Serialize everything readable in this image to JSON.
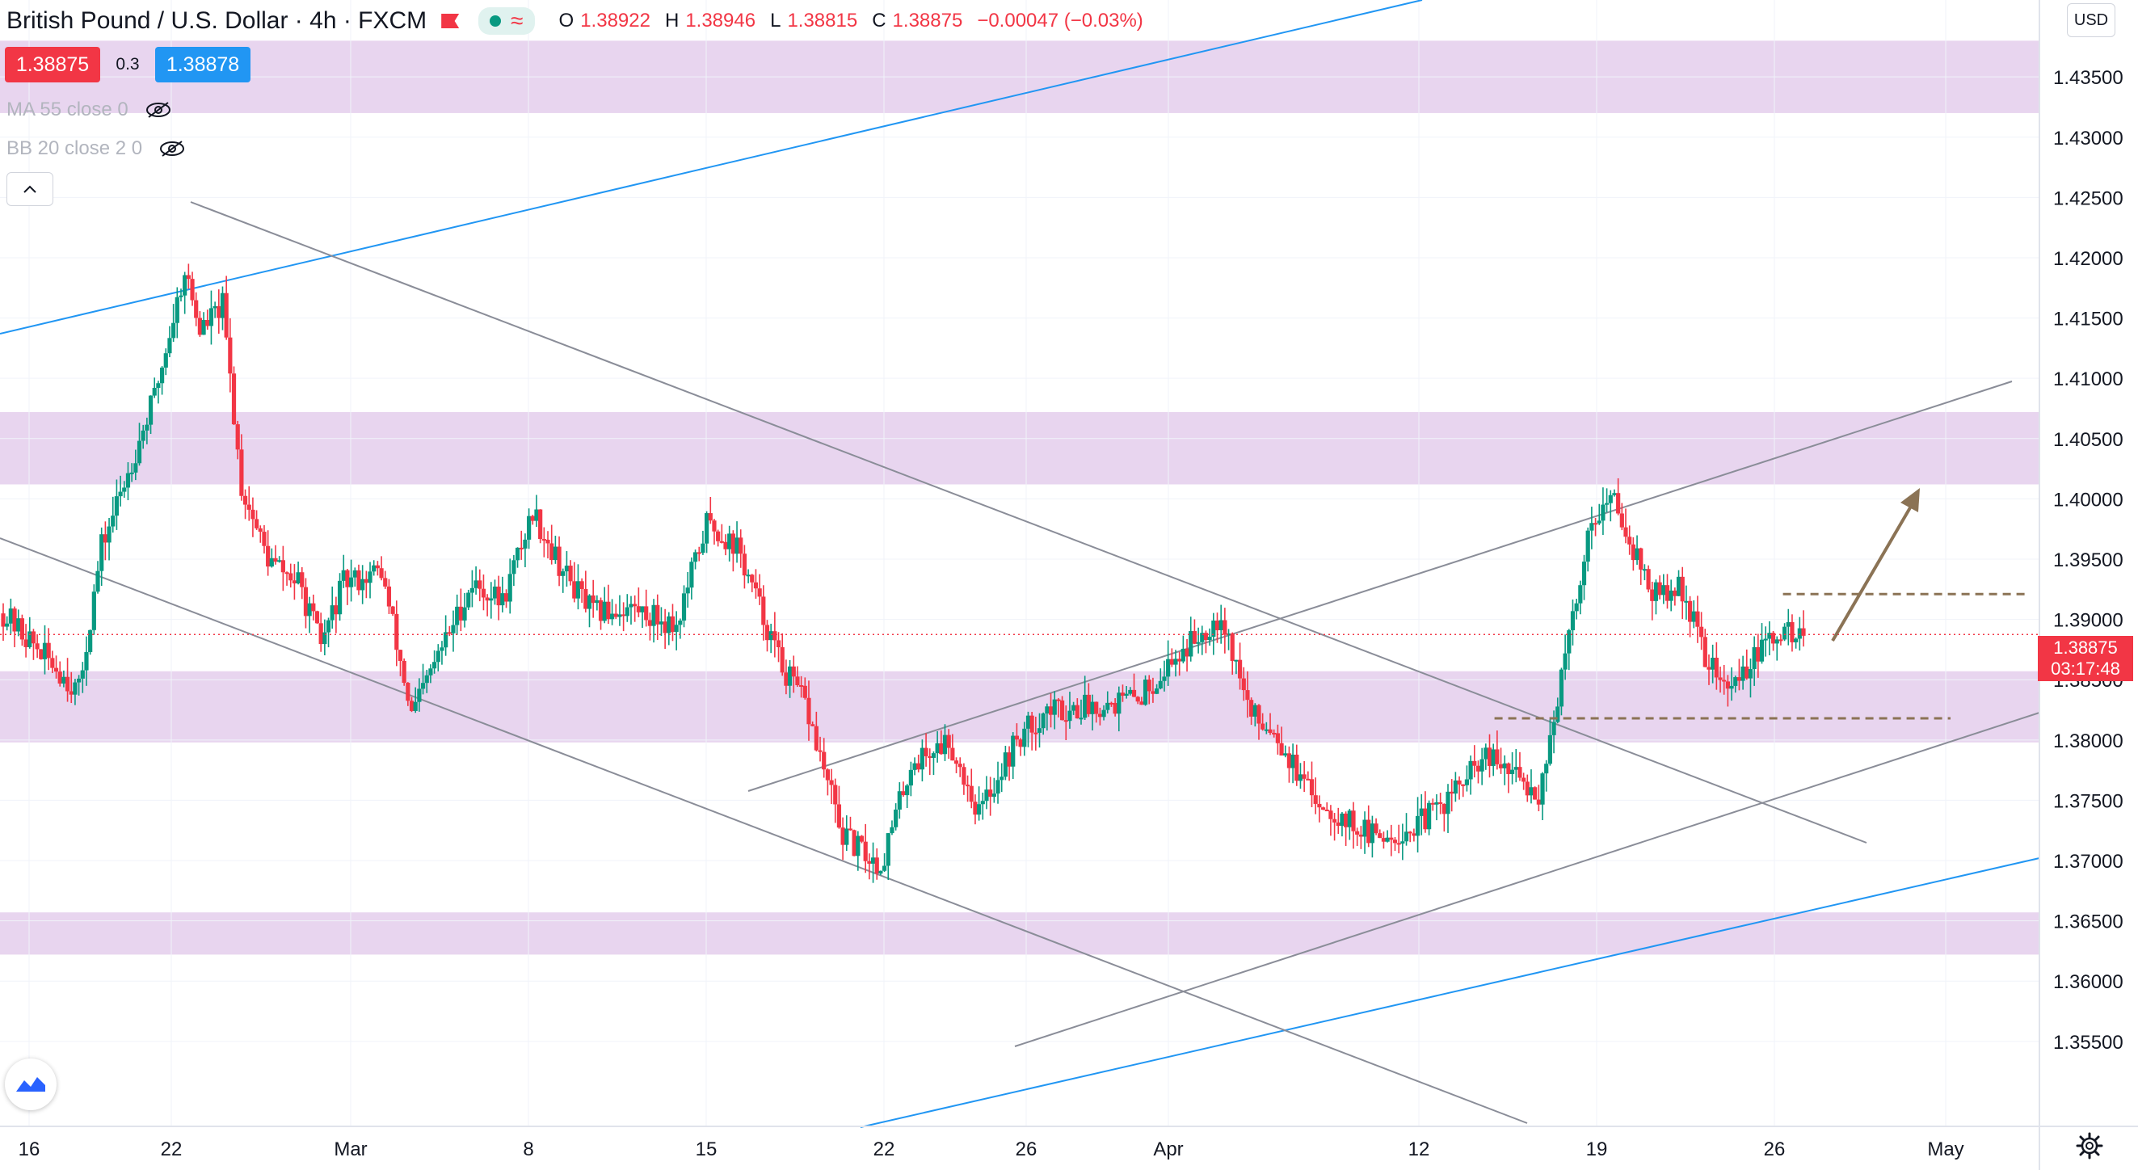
{
  "header": {
    "title": "British Pound / U.S. Dollar · 4h · FXCM",
    "ohlc": {
      "o_label": "O",
      "o_value": "1.38922",
      "h_label": "H",
      "h_value": "1.38946",
      "l_label": "L",
      "l_value": "1.38815",
      "c_label": "C",
      "c_value": "1.38875",
      "change": "−0.00047 (−0.03%)"
    },
    "status_icon": "wave-icon",
    "status_color": "#089981"
  },
  "trade": {
    "sell_price": "1.38875",
    "spread": "0.3",
    "buy_price": "1.38878",
    "sell_color": "#f23645",
    "buy_color": "#2196f3"
  },
  "indicators": [
    {
      "label": "MA 55 close 0",
      "icon": "eye-off-icon"
    },
    {
      "label": "BB 20 close 2 0",
      "icon": "eye-off-icon"
    }
  ],
  "price_axis": {
    "currency": "USD",
    "current_price": "1.38875",
    "countdown": "03:17:48",
    "tick_labels": [
      "1.43500",
      "1.43000",
      "1.42500",
      "1.42000",
      "1.41500",
      "1.41000",
      "1.40500",
      "1.40000",
      "1.39500",
      "1.39000",
      "1.38500",
      "1.38000",
      "1.37500",
      "1.37000",
      "1.36500",
      "1.36000",
      "1.35500"
    ]
  },
  "time_axis": {
    "tick_labels": [
      "16",
      "22",
      "Mar",
      "8",
      "15",
      "22",
      "26",
      "Apr",
      "12",
      "19",
      "26",
      "May"
    ]
  },
  "chart_data": {
    "type": "candlestick",
    "symbol": "British Pound / U.S. Dollar",
    "interval": "4h",
    "source": "FXCM",
    "ylim": [
      1.3505,
      1.4395
    ],
    "up_color": "#089981",
    "down_color": "#f23645",
    "zone_color": "#e1c9ea",
    "blue_line_color": "#2196f3",
    "gray_line_color": "#8a8d98",
    "annotation_color": "#8b7355",
    "candle_count": 280,
    "current_price_line": 1.38875,
    "anchors": [
      [
        0,
        1.3905
      ],
      [
        14,
        1.386
      ],
      [
        20,
        1.384
      ],
      [
        26,
        1.396
      ],
      [
        40,
        1.4085
      ],
      [
        48,
        1.419
      ],
      [
        52,
        1.414
      ],
      [
        58,
        1.416
      ],
      [
        63,
        1.401
      ],
      [
        70,
        1.395
      ],
      [
        78,
        1.393
      ],
      [
        84,
        1.388
      ],
      [
        90,
        1.393
      ],
      [
        100,
        1.394
      ],
      [
        108,
        1.382
      ],
      [
        115,
        1.387
      ],
      [
        124,
        1.393
      ],
      [
        132,
        1.3915
      ],
      [
        140,
        1.399
      ],
      [
        148,
        1.394
      ],
      [
        156,
        1.3905
      ],
      [
        166,
        1.391
      ],
      [
        178,
        1.3895
      ],
      [
        186,
        1.398
      ],
      [
        194,
        1.396
      ],
      [
        206,
        1.386
      ],
      [
        212,
        1.383
      ],
      [
        222,
        1.372
      ],
      [
        232,
        1.3695
      ],
      [
        240,
        1.378
      ],
      [
        250,
        1.38
      ],
      [
        258,
        1.374
      ],
      [
        268,
        1.38
      ],
      [
        276,
        1.3825
      ],
      [
        280,
        1.3825
      ],
      [
        300,
        1.3835
      ],
      [
        312,
        1.3875
      ],
      [
        322,
        1.3905
      ],
      [
        330,
        1.382
      ],
      [
        336,
        1.381
      ],
      [
        344,
        1.376
      ],
      [
        352,
        1.374
      ],
      [
        362,
        1.372
      ],
      [
        372,
        1.3725
      ],
      [
        380,
        1.3745
      ],
      [
        392,
        1.3785
      ],
      [
        400,
        1.377
      ],
      [
        406,
        1.3755
      ],
      [
        412,
        1.385
      ],
      [
        420,
        1.3985
      ],
      [
        426,
        1.4
      ],
      [
        436,
        1.392
      ],
      [
        444,
        1.3925
      ],
      [
        450,
        1.387
      ],
      [
        456,
        1.384
      ],
      [
        462,
        1.3865
      ],
      [
        470,
        1.389
      ],
      [
        476,
        1.3887
      ]
    ],
    "zones": [
      {
        "from": 1.432,
        "to": 1.438
      },
      {
        "from": 1.4012,
        "to": 1.4072
      },
      {
        "from": 1.3798,
        "to": 1.3857
      },
      {
        "from": 1.3622,
        "to": 1.3657
      }
    ],
    "dashed_levels": [
      {
        "price": 1.3921,
        "from_x": 1298,
        "to_x": 1475
      },
      {
        "price": 1.3818,
        "from_x": 1088,
        "to_x": 1420
      }
    ]
  }
}
